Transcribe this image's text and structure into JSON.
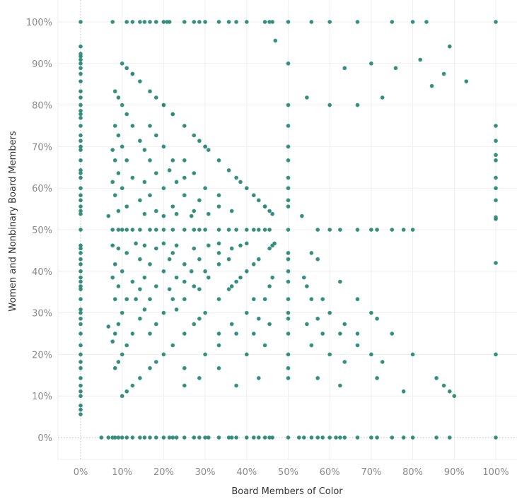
{
  "chart_data": {
    "type": "scatter",
    "title": "",
    "xlabel": "Board Members of Color",
    "ylabel": "Women and Nonbinary Board Members",
    "xlim": [
      0,
      100
    ],
    "ylim": [
      0,
      100
    ],
    "unit": "%",
    "x_ticks": [
      "0%",
      "10%",
      "20%",
      "30%",
      "40%",
      "50%",
      "60%",
      "70%",
      "80%",
      "90%",
      "100%"
    ],
    "y_ticks": [
      "0%",
      "10%",
      "20%",
      "30%",
      "40%",
      "50%",
      "60%",
      "70%",
      "80%",
      "90%",
      "100%"
    ],
    "grid": true,
    "zero_lines": "dotted",
    "legend": "none",
    "colors": {
      "point": "#2b8676",
      "grid": "#efefef",
      "zero_line": "#bdbdbd"
    },
    "points": [
      [
        0,
        100
      ],
      [
        0,
        94.1
      ],
      [
        0,
        92.3
      ],
      [
        0,
        91.7
      ],
      [
        0,
        90.9
      ],
      [
        0,
        90
      ],
      [
        0,
        88.9
      ],
      [
        0,
        87.5
      ],
      [
        0,
        85.7
      ],
      [
        0,
        83.3
      ],
      [
        0,
        81.8
      ],
      [
        0,
        80
      ],
      [
        0,
        78.6
      ],
      [
        0,
        77.8
      ],
      [
        0,
        76.9
      ],
      [
        0,
        75
      ],
      [
        0,
        72.7
      ],
      [
        0,
        71.4
      ],
      [
        0,
        70
      ],
      [
        0,
        69.2
      ],
      [
        0,
        66.7
      ],
      [
        0,
        64.3
      ],
      [
        0,
        63.6
      ],
      [
        0,
        62.5
      ],
      [
        0,
        60
      ],
      [
        0,
        58.3
      ],
      [
        0,
        57.1
      ],
      [
        0,
        55.6
      ],
      [
        0,
        54.5
      ],
      [
        0,
        53.8
      ],
      [
        0,
        50
      ],
      [
        0,
        46.2
      ],
      [
        0,
        45.5
      ],
      [
        0,
        44.4
      ],
      [
        0,
        42.9
      ],
      [
        0,
        41.7
      ],
      [
        0,
        40
      ],
      [
        0,
        38.5
      ],
      [
        0,
        37.5
      ],
      [
        0,
        36.4
      ],
      [
        0,
        35.7
      ],
      [
        0,
        33.3
      ],
      [
        0,
        30.8
      ],
      [
        0,
        30
      ],
      [
        0,
        28.6
      ],
      [
        0,
        27.3
      ],
      [
        0,
        25
      ],
      [
        0,
        22.2
      ],
      [
        0,
        20
      ],
      [
        0,
        18.2
      ],
      [
        0,
        16.7
      ],
      [
        0,
        14.3
      ],
      [
        0,
        12.5
      ],
      [
        0,
        11.1
      ],
      [
        0,
        10
      ],
      [
        0,
        7.7
      ],
      [
        0,
        6.7
      ],
      [
        0,
        5.6
      ],
      [
        5,
        0
      ],
      [
        6.7,
        0
      ],
      [
        7.7,
        0
      ],
      [
        8.3,
        0
      ],
      [
        9.1,
        0
      ],
      [
        10,
        0
      ],
      [
        11.1,
        0
      ],
      [
        12.5,
        0
      ],
      [
        14.3,
        0
      ],
      [
        15.4,
        0
      ],
      [
        16.7,
        0
      ],
      [
        18.2,
        0
      ],
      [
        20,
        0
      ],
      [
        21.4,
        0
      ],
      [
        22.2,
        0
      ],
      [
        23.1,
        0
      ],
      [
        25,
        0
      ],
      [
        27.3,
        0
      ],
      [
        28.6,
        0
      ],
      [
        30,
        0
      ],
      [
        30.8,
        0
      ],
      [
        33.3,
        0
      ],
      [
        35.7,
        0
      ],
      [
        36.4,
        0
      ],
      [
        37.5,
        0
      ],
      [
        40,
        0
      ],
      [
        41.7,
        0
      ],
      [
        42.9,
        0
      ],
      [
        44.4,
        0
      ],
      [
        45.5,
        0
      ],
      [
        46.2,
        0
      ],
      [
        50,
        0
      ],
      [
        52.6,
        0
      ],
      [
        53.8,
        0
      ],
      [
        55.6,
        0
      ],
      [
        57.1,
        0
      ],
      [
        58.3,
        0
      ],
      [
        60,
        0
      ],
      [
        61.5,
        0
      ],
      [
        62.5,
        0
      ],
      [
        63.6,
        0
      ],
      [
        66.7,
        0
      ],
      [
        70,
        0
      ],
      [
        71.4,
        0
      ],
      [
        75,
        0
      ],
      [
        77.8,
        0
      ],
      [
        80,
        0
      ],
      [
        85.7,
        0
      ],
      [
        88.9,
        0
      ],
      [
        100,
        0
      ],
      [
        7.7,
        100
      ],
      [
        11.1,
        100
      ],
      [
        12.5,
        100
      ],
      [
        14.3,
        100
      ],
      [
        15.4,
        100
      ],
      [
        16.7,
        100
      ],
      [
        18.2,
        100
      ],
      [
        20,
        100
      ],
      [
        20.8,
        100
      ],
      [
        21.4,
        100
      ],
      [
        25,
        100
      ],
      [
        27.3,
        100
      ],
      [
        28.6,
        100
      ],
      [
        30,
        100
      ],
      [
        33.3,
        100
      ],
      [
        35.7,
        100
      ],
      [
        37.5,
        100
      ],
      [
        40,
        100
      ],
      [
        44.4,
        100
      ],
      [
        45.5,
        100
      ],
      [
        46.2,
        100
      ],
      [
        50,
        100
      ],
      [
        55.6,
        100
      ],
      [
        60,
        100
      ],
      [
        66.7,
        100
      ],
      [
        75,
        100
      ],
      [
        80,
        100
      ],
      [
        83.3,
        100
      ],
      [
        100,
        100
      ],
      [
        100,
        75
      ],
      [
        100,
        71.4
      ],
      [
        100,
        68
      ],
      [
        100,
        66.7
      ],
      [
        100,
        62.5
      ],
      [
        100,
        60
      ],
      [
        100,
        57.1
      ],
      [
        100,
        53
      ],
      [
        100,
        52.6
      ],
      [
        100,
        42
      ],
      [
        100,
        20
      ],
      [
        50,
        90
      ],
      [
        50,
        80
      ],
      [
        50,
        75
      ],
      [
        50,
        70
      ],
      [
        50,
        66.7
      ],
      [
        50,
        62.5
      ],
      [
        50,
        60
      ],
      [
        50,
        57.1
      ],
      [
        50,
        55.6
      ],
      [
        50,
        50
      ],
      [
        50,
        44.4
      ],
      [
        50,
        42.9
      ],
      [
        50,
        40
      ],
      [
        50,
        37.5
      ],
      [
        50,
        33.3
      ],
      [
        50,
        30
      ],
      [
        50,
        28.6
      ],
      [
        50,
        25
      ],
      [
        50,
        20
      ],
      [
        50,
        16.7
      ],
      [
        50,
        14.3
      ],
      [
        7.7,
        50
      ],
      [
        9.1,
        50
      ],
      [
        10,
        50
      ],
      [
        11.1,
        50
      ],
      [
        12.5,
        50
      ],
      [
        14.3,
        50
      ],
      [
        16.7,
        50
      ],
      [
        18.2,
        50
      ],
      [
        20,
        50
      ],
      [
        22.2,
        50
      ],
      [
        25,
        50
      ],
      [
        27.3,
        50
      ],
      [
        28.6,
        50
      ],
      [
        30,
        50
      ],
      [
        33.3,
        50
      ],
      [
        35.7,
        50
      ],
      [
        37.5,
        50
      ],
      [
        40,
        50
      ],
      [
        41.7,
        50
      ],
      [
        42.9,
        50
      ],
      [
        44.4,
        50
      ],
      [
        45.5,
        50
      ],
      [
        57.1,
        50
      ],
      [
        60,
        50
      ],
      [
        62.5,
        50
      ],
      [
        66.7,
        50
      ],
      [
        70,
        50
      ],
      [
        71.4,
        50
      ],
      [
        75,
        50
      ],
      [
        77.8,
        50
      ],
      [
        80,
        50
      ],
      [
        14.3,
        14.3
      ],
      [
        14.3,
        28.6
      ],
      [
        14.3,
        42.9
      ],
      [
        14.3,
        57.1
      ],
      [
        14.3,
        71.4
      ],
      [
        14.3,
        85.7
      ],
      [
        28.6,
        14.3
      ],
      [
        28.6,
        28.6
      ],
      [
        28.6,
        42.9
      ],
      [
        28.6,
        57.1
      ],
      [
        28.6,
        71.4
      ],
      [
        42.9,
        14.3
      ],
      [
        42.9,
        28.6
      ],
      [
        42.9,
        42.9
      ],
      [
        42.9,
        57.1
      ],
      [
        57.1,
        14.3
      ],
      [
        57.1,
        28.6
      ],
      [
        57.1,
        42.9
      ],
      [
        71.4,
        14.3
      ],
      [
        71.4,
        28.6
      ],
      [
        85.7,
        14.3
      ],
      [
        12.5,
        12.5
      ],
      [
        12.5,
        25
      ],
      [
        12.5,
        37.5
      ],
      [
        12.5,
        62.5
      ],
      [
        12.5,
        75
      ],
      [
        12.5,
        87.5
      ],
      [
        25,
        12.5
      ],
      [
        25,
        25
      ],
      [
        25,
        37.5
      ],
      [
        25,
        62.5
      ],
      [
        25,
        75
      ],
      [
        37.5,
        12.5
      ],
      [
        37.5,
        25
      ],
      [
        37.5,
        37.5
      ],
      [
        37.5,
        62.5
      ],
      [
        62.5,
        12.5
      ],
      [
        62.5,
        25
      ],
      [
        62.5,
        37.5
      ],
      [
        75,
        25
      ],
      [
        87.5,
        12.5
      ],
      [
        11.1,
        11.1
      ],
      [
        11.1,
        22.2
      ],
      [
        11.1,
        33.3
      ],
      [
        11.1,
        44.4
      ],
      [
        11.1,
        55.6
      ],
      [
        11.1,
        66.7
      ],
      [
        11.1,
        77.8
      ],
      [
        11.1,
        88.9
      ],
      [
        22.2,
        22.2
      ],
      [
        22.2,
        33.3
      ],
      [
        22.2,
        44.4
      ],
      [
        22.2,
        55.6
      ],
      [
        22.2,
        66.7
      ],
      [
        22.2,
        77.8
      ],
      [
        33.3,
        22.2
      ],
      [
        33.3,
        33.3
      ],
      [
        33.3,
        44.4
      ],
      [
        33.3,
        55.6
      ],
      [
        33.3,
        66.7
      ],
      [
        44.4,
        22.2
      ],
      [
        44.4,
        33.3
      ],
      [
        44.4,
        55.6
      ],
      [
        55.6,
        22.2
      ],
      [
        55.6,
        33.3
      ],
      [
        55.6,
        44.4
      ],
      [
        66.7,
        22.2
      ],
      [
        66.7,
        33.3
      ],
      [
        77.8,
        11.1
      ],
      [
        88.9,
        11.1
      ],
      [
        10,
        10
      ],
      [
        10,
        20
      ],
      [
        10,
        30
      ],
      [
        10,
        40
      ],
      [
        10,
        60
      ],
      [
        10,
        70
      ],
      [
        10,
        80
      ],
      [
        10,
        90
      ],
      [
        20,
        20
      ],
      [
        20,
        30
      ],
      [
        20,
        40
      ],
      [
        20,
        60
      ],
      [
        20,
        70
      ],
      [
        20,
        80
      ],
      [
        30,
        20
      ],
      [
        30,
        30
      ],
      [
        30,
        40
      ],
      [
        30,
        60
      ],
      [
        30,
        70
      ],
      [
        40,
        20
      ],
      [
        40,
        30
      ],
      [
        40,
        40
      ],
      [
        40,
        60
      ],
      [
        60,
        20
      ],
      [
        60,
        30
      ],
      [
        70,
        20
      ],
      [
        70,
        30
      ],
      [
        80,
        20
      ],
      [
        90,
        10
      ],
      [
        9.1,
        18.2
      ],
      [
        9.1,
        27.3
      ],
      [
        9.1,
        36.4
      ],
      [
        9.1,
        45.5
      ],
      [
        9.1,
        54.5
      ],
      [
        9.1,
        63.6
      ],
      [
        9.1,
        72.7
      ],
      [
        9.1,
        81.8
      ],
      [
        18.2,
        18.2
      ],
      [
        18.2,
        27.3
      ],
      [
        18.2,
        36.4
      ],
      [
        18.2,
        45.5
      ],
      [
        18.2,
        54.5
      ],
      [
        18.2,
        63.6
      ],
      [
        18.2,
        72.7
      ],
      [
        18.2,
        81.8
      ],
      [
        27.3,
        27.3
      ],
      [
        27.3,
        36.4
      ],
      [
        27.3,
        45.5
      ],
      [
        27.3,
        54.5
      ],
      [
        27.3,
        63.6
      ],
      [
        27.3,
        72.7
      ],
      [
        36.4,
        27.3
      ],
      [
        36.4,
        36.4
      ],
      [
        36.4,
        45.5
      ],
      [
        36.4,
        54.5
      ],
      [
        45.5,
        27.3
      ],
      [
        45.5,
        36.4
      ],
      [
        45.5,
        45.5
      ],
      [
        45.5,
        54.5
      ],
      [
        54.5,
        27.3
      ],
      [
        54.5,
        36.4
      ],
      [
        63.6,
        18.2
      ],
      [
        63.6,
        27.3
      ],
      [
        72.7,
        18.2
      ],
      [
        8.3,
        16.7
      ],
      [
        8.3,
        25
      ],
      [
        8.3,
        33.3
      ],
      [
        8.3,
        41.7
      ],
      [
        8.3,
        58.3
      ],
      [
        8.3,
        66.7
      ],
      [
        8.3,
        75
      ],
      [
        8.3,
        83.3
      ],
      [
        16.7,
        16.7
      ],
      [
        16.7,
        25
      ],
      [
        16.7,
        33.3
      ],
      [
        16.7,
        41.7
      ],
      [
        16.7,
        58.3
      ],
      [
        16.7,
        66.7
      ],
      [
        16.7,
        75
      ],
      [
        16.7,
        83.3
      ],
      [
        25,
        16.7
      ],
      [
        25,
        33.3
      ],
      [
        25,
        41.7
      ],
      [
        25,
        58.3
      ],
      [
        25,
        66.7
      ],
      [
        33.3,
        16.7
      ],
      [
        33.3,
        25
      ],
      [
        33.3,
        41.7
      ],
      [
        33.3,
        58.3
      ],
      [
        41.7,
        25
      ],
      [
        41.7,
        33.3
      ],
      [
        41.7,
        41.7
      ],
      [
        41.7,
        58.3
      ],
      [
        58.3,
        25
      ],
      [
        58.3,
        33.3
      ],
      [
        66.7,
        25
      ],
      [
        7.7,
        23.1
      ],
      [
        7.7,
        38.5
      ],
      [
        7.7,
        46.2
      ],
      [
        7.7,
        61.5
      ],
      [
        7.7,
        69.2
      ],
      [
        15.4,
        30.8
      ],
      [
        15.4,
        38.5
      ],
      [
        15.4,
        46.2
      ],
      [
        15.4,
        53.8
      ],
      [
        15.4,
        61.5
      ],
      [
        15.4,
        69.2
      ],
      [
        23.1,
        30.8
      ],
      [
        23.1,
        38.5
      ],
      [
        23.1,
        46.2
      ],
      [
        23.1,
        53.8
      ],
      [
        23.1,
        61.5
      ],
      [
        30.8,
        38.5
      ],
      [
        30.8,
        46.2
      ],
      [
        30.8,
        53.8
      ],
      [
        30.8,
        69.2
      ],
      [
        38.5,
        38.5
      ],
      [
        38.5,
        46.2
      ],
      [
        38.5,
        61.5
      ],
      [
        46.2,
        38.5
      ],
      [
        46.2,
        46.2
      ],
      [
        46.2,
        53.8
      ],
      [
        53.8,
        38.5
      ],
      [
        14.3,
        35.7
      ],
      [
        21.4,
        35.7
      ],
      [
        21.4,
        42.9
      ],
      [
        21.4,
        64.3
      ],
      [
        28.6,
        35.7
      ],
      [
        35.7,
        35.7
      ],
      [
        35.7,
        42.9
      ],
      [
        35.7,
        64.3
      ],
      [
        6.7,
        26.7
      ],
      [
        13.3,
        33.3
      ],
      [
        20,
        46.7
      ],
      [
        26.7,
        40
      ],
      [
        33.3,
        46.7
      ],
      [
        40,
        46.7
      ],
      [
        46.7,
        46.7
      ],
      [
        53.3,
        53.3
      ],
      [
        13.3,
        46.7
      ],
      [
        26.7,
        53.3
      ],
      [
        6.7,
        53.3
      ],
      [
        20,
        53.3
      ],
      [
        44.4,
        55.6
      ],
      [
        12.5,
        87.5
      ],
      [
        20,
        80
      ],
      [
        22.2,
        77.8
      ],
      [
        30,
        70
      ],
      [
        46.9,
        95.5
      ],
      [
        87.5,
        87.5
      ],
      [
        88.9,
        94.1
      ],
      [
        84.6,
        84.6
      ],
      [
        92.9,
        85.7
      ],
      [
        81.8,
        90.9
      ],
      [
        66.7,
        80
      ],
      [
        72.7,
        81.8
      ],
      [
        60,
        80
      ],
      [
        70,
        90
      ],
      [
        54.5,
        81.8
      ],
      [
        63.6,
        88.9
      ],
      [
        75.9,
        88.9
      ]
    ]
  }
}
